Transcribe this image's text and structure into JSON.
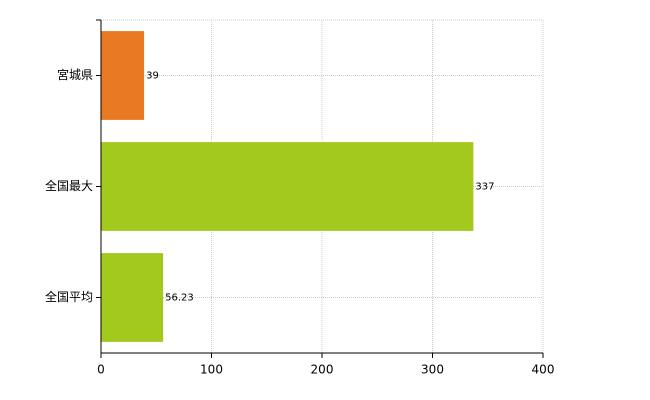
{
  "chart_data": {
    "type": "hbar",
    "categories": [
      "宮城県",
      "全国最大",
      "全国平均"
    ],
    "values": [
      39,
      337,
      56.23
    ],
    "colors": [
      "#e87a23",
      "#a4c91e",
      "#a4c91e"
    ],
    "xlim": [
      0,
      400
    ],
    "xticks": [
      0,
      100,
      200,
      300,
      400
    ],
    "grid": true
  }
}
